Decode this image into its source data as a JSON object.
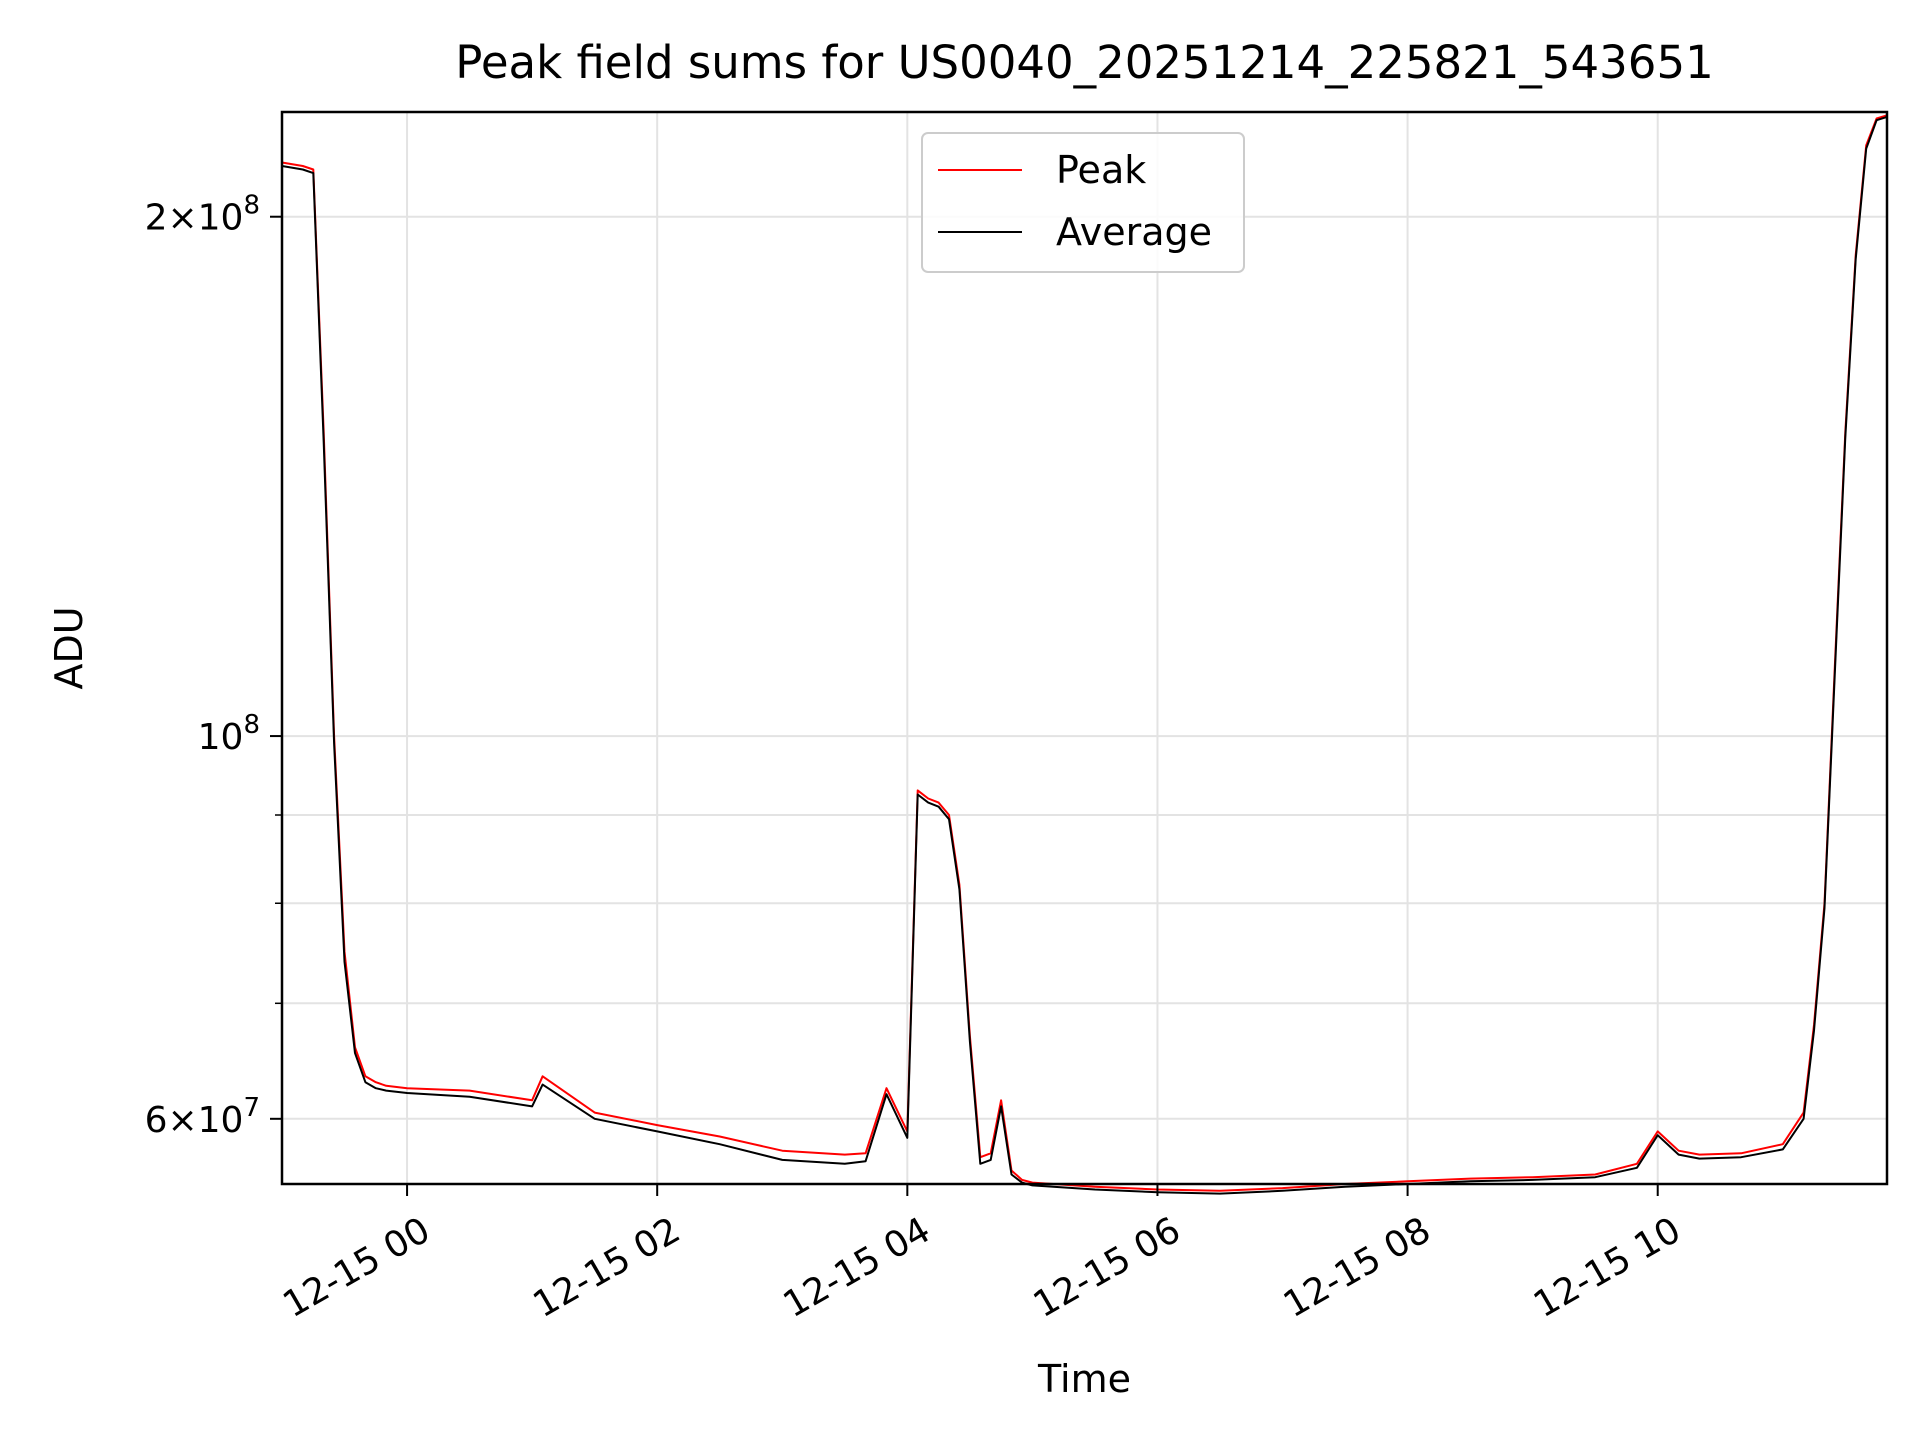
{
  "chart_data": {
    "type": "line",
    "title": "Peak field sums for US0040_20251214_225821_543651",
    "xlabel": "Time",
    "ylabel": "ADU",
    "yscale": "log",
    "xlim": [
      "2025-12-14T23:00",
      "2025-12-15T11:50"
    ],
    "ylim": [
      55000000,
      230000000
    ],
    "grid": true,
    "legend_position": "top-center",
    "x_tick_labels": [
      "12-15 00",
      "12-15 02",
      "12-15 04",
      "12-15 06",
      "12-15 08",
      "12-15 10"
    ],
    "y_tick_labels": [
      {
        "value": 200000000,
        "mantissa": "2",
        "times": "×",
        "base": "10",
        "exp": "8"
      },
      {
        "value": 100000000,
        "mantissa": "",
        "times": "",
        "base": "10",
        "exp": "8"
      },
      {
        "value": 60000000,
        "mantissa": "6",
        "times": "×",
        "base": "10",
        "exp": "7"
      }
    ],
    "y_minor_ticks": [
      70000000,
      80000000,
      90000000
    ],
    "series": [
      {
        "name": "Peak",
        "color": "#ff0000",
        "x": [
          "2025-12-14T23:00",
          "2025-12-14T23:10",
          "2025-12-14T23:15",
          "2025-12-14T23:20",
          "2025-12-14T23:25",
          "2025-12-14T23:30",
          "2025-12-14T23:35",
          "2025-12-14T23:40",
          "2025-12-14T23:45",
          "2025-12-14T23:50",
          "2025-12-15T00:00",
          "2025-12-15T00:30",
          "2025-12-15T01:00",
          "2025-12-15T01:05",
          "2025-12-15T01:30",
          "2025-12-15T02:00",
          "2025-12-15T02:30",
          "2025-12-15T03:00",
          "2025-12-15T03:30",
          "2025-12-15T03:40",
          "2025-12-15T03:50",
          "2025-12-15T04:00",
          "2025-12-15T04:05",
          "2025-12-15T04:10",
          "2025-12-15T04:15",
          "2025-12-15T04:20",
          "2025-12-15T04:25",
          "2025-12-15T04:30",
          "2025-12-15T04:35",
          "2025-12-15T04:40",
          "2025-12-15T04:45",
          "2025-12-15T04:50",
          "2025-12-15T04:55",
          "2025-12-15T05:00",
          "2025-12-15T05:30",
          "2025-12-15T06:00",
          "2025-12-15T06:30",
          "2025-12-15T07:00",
          "2025-12-15T07:30",
          "2025-12-15T08:00",
          "2025-12-15T08:30",
          "2025-12-15T09:00",
          "2025-12-15T09:30",
          "2025-12-15T09:50",
          "2025-12-15T10:00",
          "2025-12-15T10:10",
          "2025-12-15T10:20",
          "2025-12-15T10:40",
          "2025-12-15T11:00",
          "2025-12-15T11:10",
          "2025-12-15T11:15",
          "2025-12-15T11:20",
          "2025-12-15T11:25",
          "2025-12-15T11:30",
          "2025-12-15T11:35",
          "2025-12-15T11:40",
          "2025-12-15T11:45",
          "2025-12-15T11:50"
        ],
        "y": [
          215000000,
          214000000,
          213000000,
          150000000,
          100000000,
          75000000,
          66000000,
          63500000,
          63000000,
          62700000,
          62500000,
          62300000,
          61500000,
          63500000,
          60500000,
          59500000,
          58600000,
          57500000,
          57200000,
          57300000,
          62500000,
          59000000,
          93000000,
          92000000,
          91500000,
          90000000,
          82000000,
          67000000,
          57000000,
          57300000,
          61500000,
          56000000,
          55300000,
          55100000,
          54800000,
          54600000,
          54500000,
          54700000,
          55000000,
          55200000,
          55400000,
          55500000,
          55700000,
          56500000,
          59000000,
          57500000,
          57200000,
          57300000,
          58000000,
          60500000,
          68000000,
          80000000,
          110000000,
          150000000,
          190000000,
          220000000,
          228000000,
          229000000
        ]
      },
      {
        "name": "Average",
        "color": "#000000",
        "x": [
          "2025-12-14T23:00",
          "2025-12-14T23:10",
          "2025-12-14T23:15",
          "2025-12-14T23:20",
          "2025-12-14T23:25",
          "2025-12-14T23:30",
          "2025-12-14T23:35",
          "2025-12-14T23:40",
          "2025-12-14T23:45",
          "2025-12-14T23:50",
          "2025-12-15T00:00",
          "2025-12-15T00:30",
          "2025-12-15T01:00",
          "2025-12-15T01:05",
          "2025-12-15T01:30",
          "2025-12-15T02:00",
          "2025-12-15T02:30",
          "2025-12-15T03:00",
          "2025-12-15T03:30",
          "2025-12-15T03:40",
          "2025-12-15T03:50",
          "2025-12-15T04:00",
          "2025-12-15T04:05",
          "2025-12-15T04:10",
          "2025-12-15T04:15",
          "2025-12-15T04:20",
          "2025-12-15T04:25",
          "2025-12-15T04:30",
          "2025-12-15T04:35",
          "2025-12-15T04:40",
          "2025-12-15T04:45",
          "2025-12-15T04:50",
          "2025-12-15T04:55",
          "2025-12-15T05:00",
          "2025-12-15T05:30",
          "2025-12-15T06:00",
          "2025-12-15T06:30",
          "2025-12-15T07:00",
          "2025-12-15T07:30",
          "2025-12-15T08:00",
          "2025-12-15T08:30",
          "2025-12-15T09:00",
          "2025-12-15T09:30",
          "2025-12-15T09:50",
          "2025-12-15T10:00",
          "2025-12-15T10:10",
          "2025-12-15T10:20",
          "2025-12-15T10:40",
          "2025-12-15T11:00",
          "2025-12-15T11:10",
          "2025-12-15T11:15",
          "2025-12-15T11:20",
          "2025-12-15T11:25",
          "2025-12-15T11:30",
          "2025-12-15T11:35",
          "2025-12-15T11:40",
          "2025-12-15T11:45",
          "2025-12-15T11:50"
        ],
        "y": [
          214000000,
          213000000,
          212000000,
          148000000,
          99000000,
          74000000,
          65500000,
          63000000,
          62500000,
          62300000,
          62100000,
          61800000,
          61000000,
          62800000,
          60000000,
          59000000,
          58000000,
          56800000,
          56500000,
          56700000,
          62000000,
          58500000,
          92500000,
          91500000,
          91000000,
          89500000,
          81500000,
          66500000,
          56500000,
          56800000,
          61000000,
          55700000,
          55100000,
          54900000,
          54600000,
          54400000,
          54300000,
          54500000,
          54800000,
          55000000,
          55200000,
          55300000,
          55500000,
          56200000,
          58700000,
          57200000,
          56900000,
          57000000,
          57600000,
          60000000,
          67500000,
          79500000,
          109000000,
          149000000,
          189000000,
          219000000,
          227500000,
          228500000
        ]
      }
    ]
  }
}
